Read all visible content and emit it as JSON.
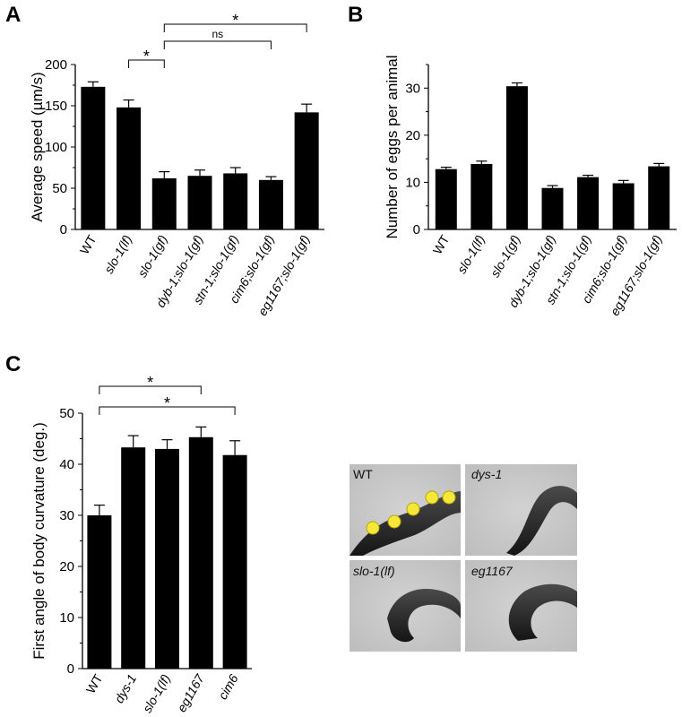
{
  "chart_data": [
    {
      "panel": "A",
      "type": "bar",
      "ylabel": "Average speed (µm/s)",
      "ylim": [
        0,
        200
      ],
      "yticks": [
        0,
        50,
        100,
        150,
        200
      ],
      "categories": [
        "WT",
        "slo-1(lf)",
        "slo-1(gf)",
        "dyb-1;slo-1(gf)",
        "stn-1;slo-1(gf)",
        "cim6;slo-1(gf)",
        "eg1167;slo-1(gf)"
      ],
      "values": [
        173,
        148,
        62,
        65,
        68,
        60,
        142
      ],
      "errors": [
        6,
        9,
        8,
        7,
        7,
        4,
        10
      ],
      "annotations": [
        {
          "from": "slo-1(lf)",
          "to": "slo-1(gf)",
          "label": "*"
        },
        {
          "from": "slo-1(gf)",
          "to": "cim6;slo-1(gf)",
          "label": "ns"
        },
        {
          "from": "slo-1(gf)",
          "to": "eg1167;slo-1(gf)",
          "label": "*"
        }
      ]
    },
    {
      "panel": "B",
      "type": "bar",
      "ylabel": "Number of eggs per animal",
      "ylim": [
        0,
        35
      ],
      "yticks": [
        0,
        10,
        20,
        30
      ],
      "categories": [
        "WT",
        "slo-1(lf)",
        "slo-1(gf)",
        "dyb-1;slo-1(gf)",
        "stn-1;slo-1(gf)",
        "cim6;slo-1(gf)",
        "eg1167;slo-1(gf)"
      ],
      "values": [
        12.8,
        13.9,
        30.4,
        8.8,
        11.1,
        9.8,
        13.4
      ],
      "errors": [
        0.4,
        0.6,
        0.7,
        0.5,
        0.4,
        0.6,
        0.6
      ]
    },
    {
      "panel": "C",
      "type": "bar",
      "ylabel": "First angle of body curvature (deg.)",
      "ylim": [
        0,
        50
      ],
      "yticks": [
        0,
        10,
        20,
        30,
        40,
        50
      ],
      "categories": [
        "WT",
        "dys-1",
        "slo-1(lf)",
        "eg1167",
        "cim6"
      ],
      "values": [
        30,
        43.3,
        43,
        45.3,
        41.8
      ],
      "errors": [
        2,
        2.3,
        1.8,
        2,
        2.8
      ],
      "annotations": [
        {
          "from": "WT",
          "to": "eg1167",
          "label": "*"
        },
        {
          "from": "WT",
          "to": "cim6",
          "label": "*"
        }
      ]
    }
  ],
  "images": [
    {
      "label": "WT",
      "markers": true
    },
    {
      "label": "dys-1",
      "markers": false
    },
    {
      "label": "slo-1(lf)",
      "markers": false
    },
    {
      "label": "eg1167",
      "markers": false
    }
  ],
  "colors": {
    "bar": "#000000",
    "marker": "#f5e83a",
    "photo_bg": "#c9c9c9",
    "worm": "#2b2b2b"
  }
}
